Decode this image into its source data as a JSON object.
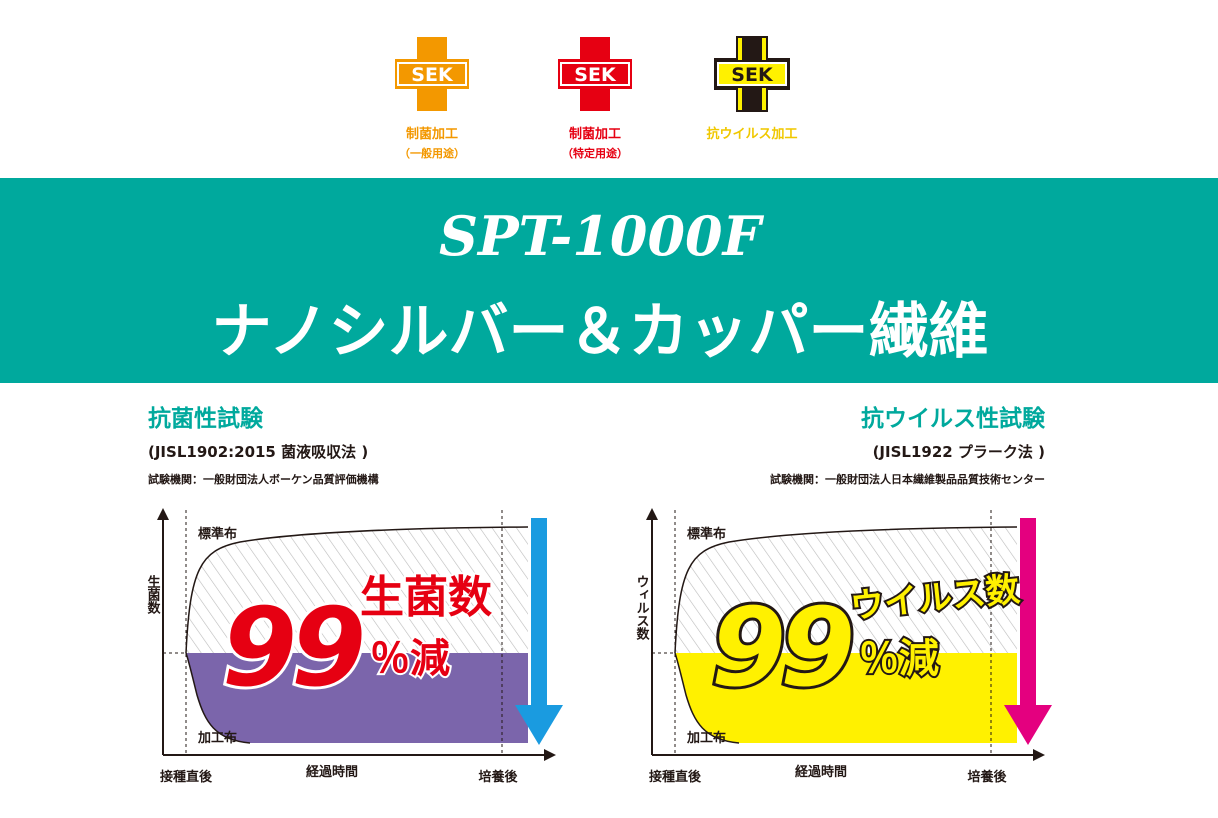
{
  "logos": [
    {
      "mark": "SEK",
      "label": "制菌加工",
      "sublabel": "（一般用途）"
    },
    {
      "mark": "SEK",
      "label": "制菌加工",
      "sublabel": "（特定用途）"
    },
    {
      "mark": "SEK",
      "label": "抗ウイルス加工"
    }
  ],
  "banner": {
    "product": "SPT-1000F",
    "title": "ナノシルバー＆カッパー繊維"
  },
  "panels": [
    {
      "title": "抗菌性試験",
      "method": "(JISL1902:2015 菌液吸収法 )",
      "lab": "試験機関：一般財団法人ボーケン品質評価機構",
      "y_axis_label": "生菌数",
      "standard_label": "標準布",
      "treated_label": "加工布",
      "big_number": "99",
      "callout": "生菌数",
      "reduction": "％減",
      "x_start": "接種直後",
      "x_label": "経過時間",
      "x_end": "培養後"
    },
    {
      "title": "抗ウイルス性試験",
      "method": "(JISL1922 プラーク法 )",
      "lab": "試験機関：一般財団法人日本繊維製品品質技術センター",
      "y_axis_label": "ウィルス数",
      "standard_label": "標準布",
      "treated_label": "加工布",
      "big_number": "99",
      "callout": "ウイルス数",
      "reduction": "％減",
      "x_start": "接種直後",
      "x_label": "経過時間",
      "x_end": "培養後"
    }
  ]
}
